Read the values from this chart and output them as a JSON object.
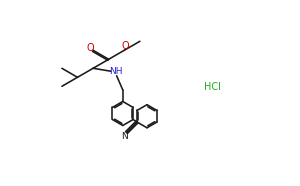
{
  "bg_color": "#ffffff",
  "bond_color": "#1a1a1a",
  "O_color": "#cc0000",
  "N_color": "#2222cc",
  "HCl_color": "#22aa22",
  "lw": 1.15,
  "xlim": [
    0,
    10
  ],
  "ylim": [
    0,
    6.2
  ],
  "figw": 3.0,
  "figh": 1.86,
  "dpi": 100
}
